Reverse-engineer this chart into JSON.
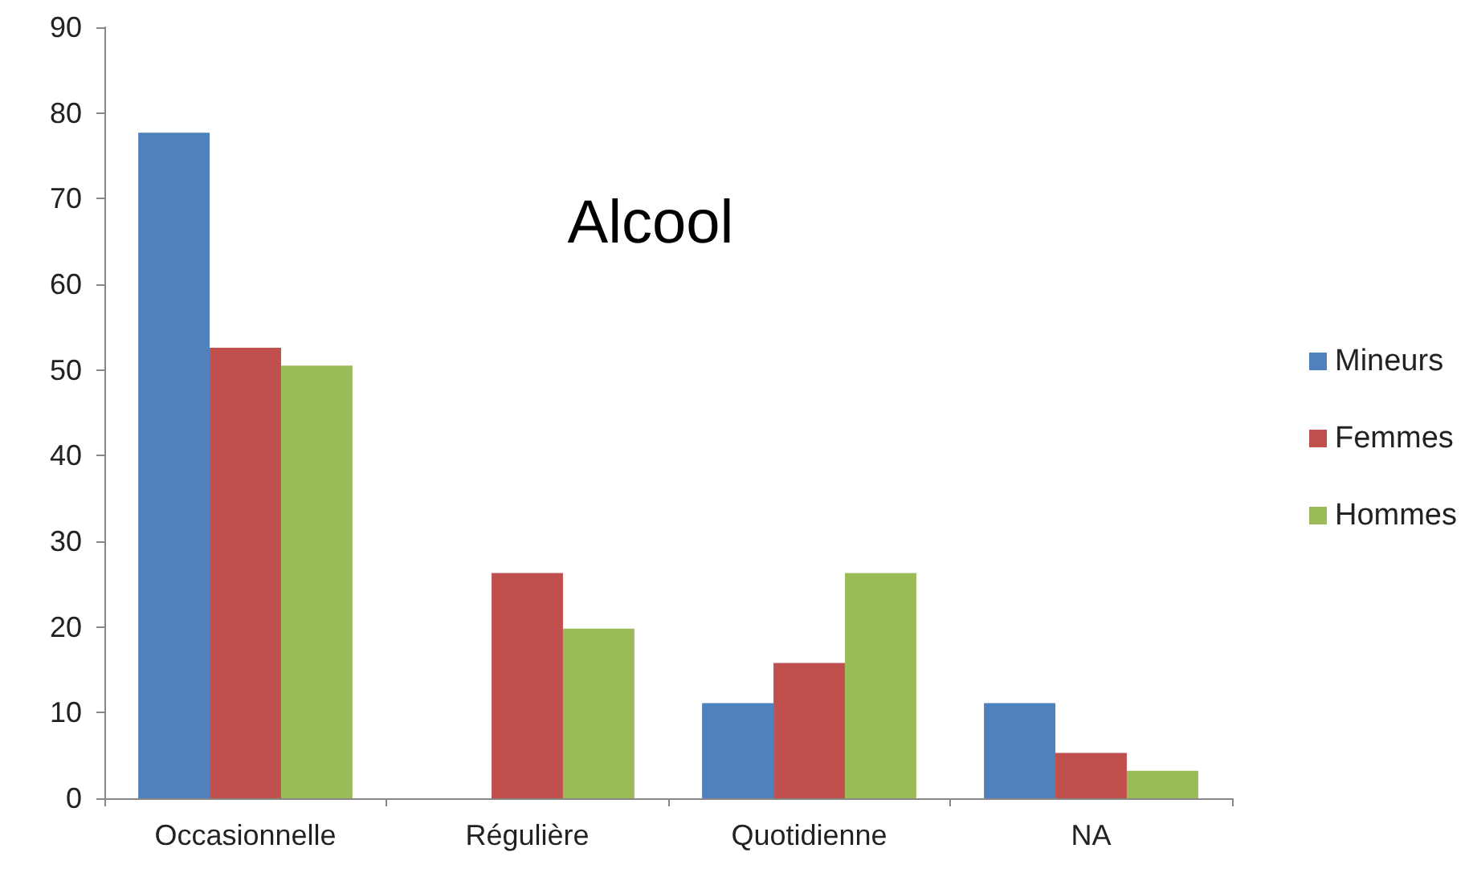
{
  "chart_data": {
    "type": "bar",
    "title": "Alcool",
    "categories": [
      "Occasionnelle",
      "Régulière",
      "Quotidienne",
      "NA"
    ],
    "series": [
      {
        "name": "Mineurs",
        "color": "#4f81bd",
        "values": [
          77.7,
          0,
          11.1,
          11.1
        ]
      },
      {
        "name": "Femmes",
        "color": "#c0504d",
        "values": [
          52.6,
          26.3,
          15.8,
          5.3
        ]
      },
      {
        "name": "Hommes",
        "color": "#9bbb59",
        "values": [
          50.5,
          19.8,
          26.3,
          3.2
        ]
      }
    ],
    "ylim": [
      0,
      90
    ],
    "yticks": [
      0,
      10,
      20,
      30,
      40,
      50,
      60,
      70,
      80,
      90
    ],
    "grid": false,
    "legend": "right"
  }
}
